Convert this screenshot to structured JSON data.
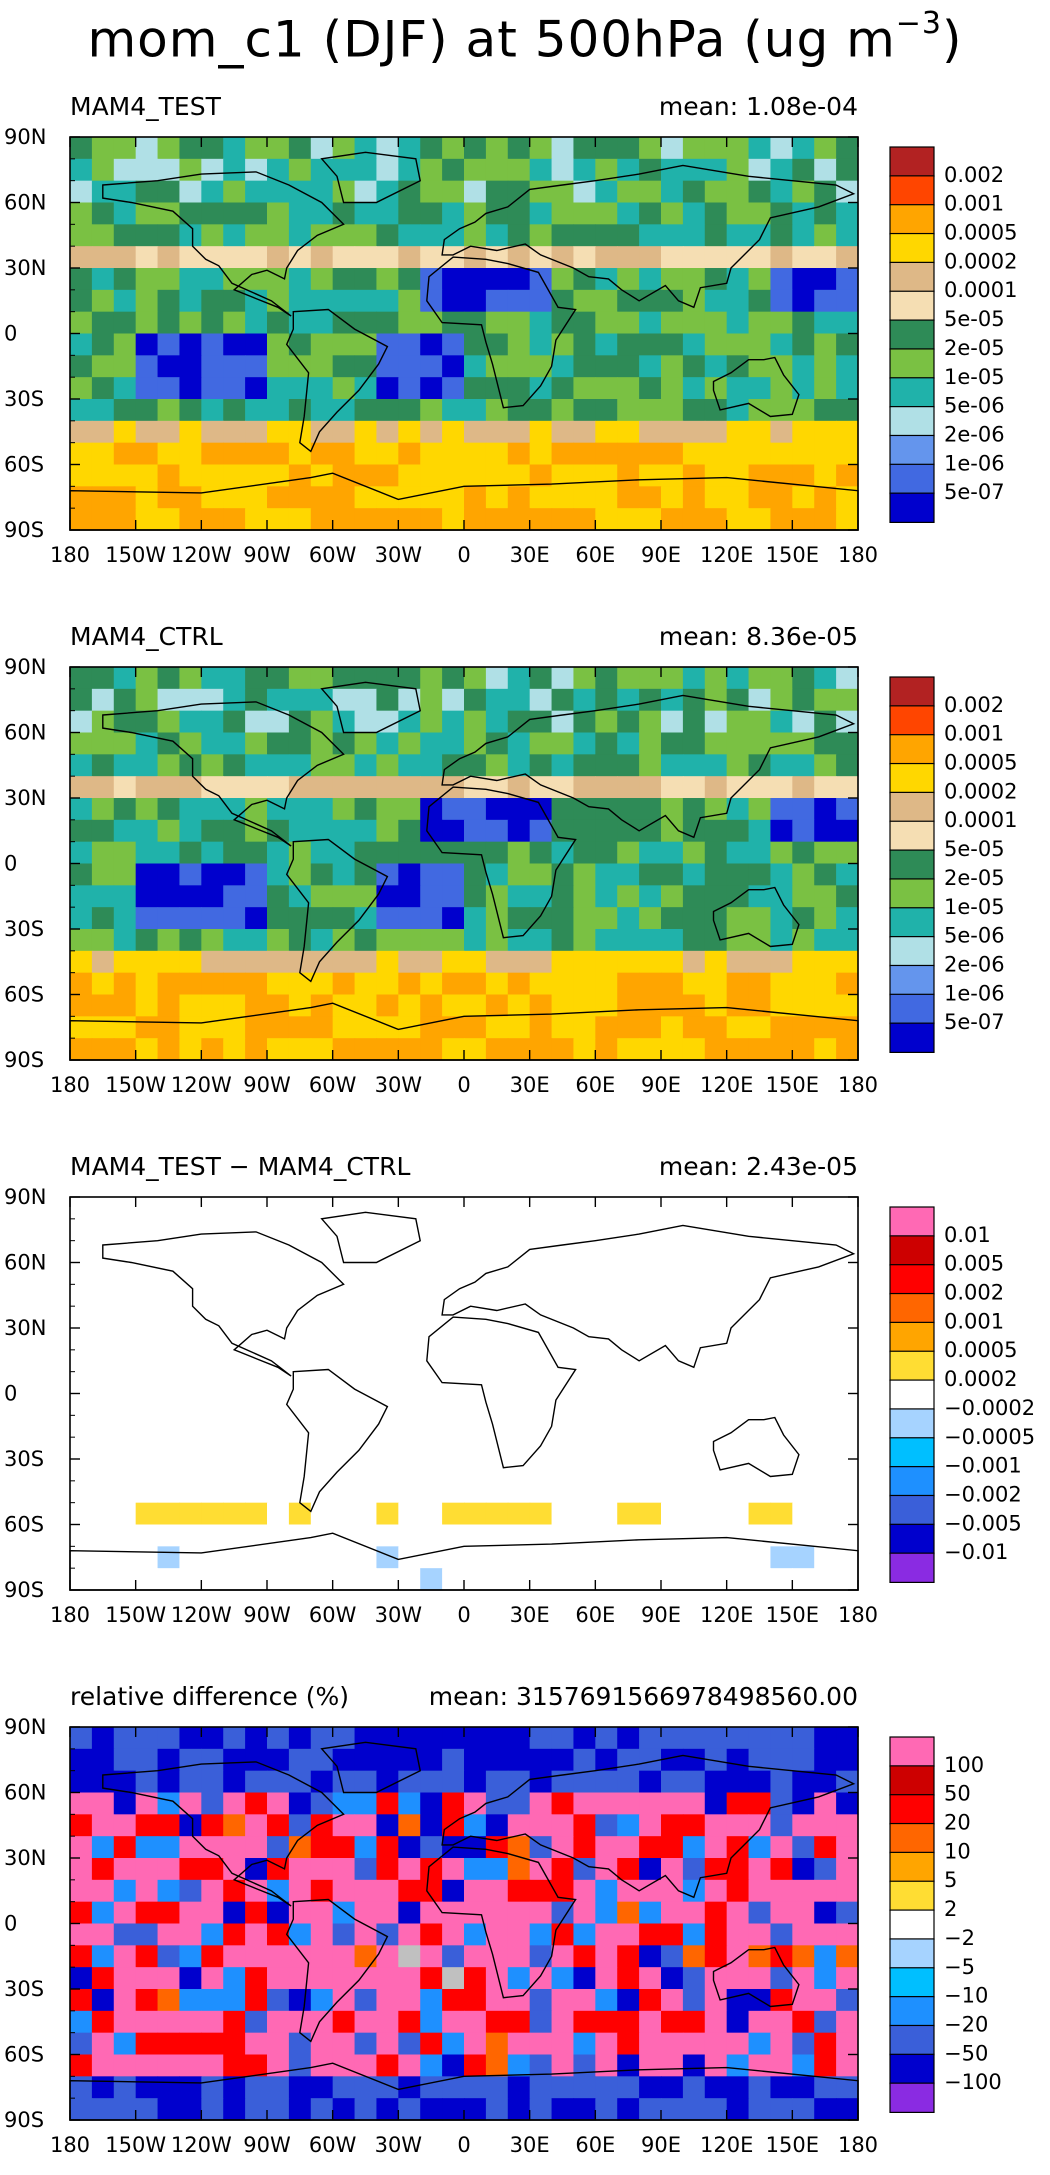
{
  "title_main": "mom_c1 (DJF) at 500hPa (ug m",
  "title_sup": "−3",
  "title_end": ")",
  "lon_ticks": [
    "180",
    "150W",
    "120W",
    "90W",
    "60W",
    "30W",
    "0",
    "30E",
    "60E",
    "90E",
    "120E",
    "150E",
    "180"
  ],
  "lat_ticks": [
    "90N",
    "60N",
    "30N",
    "0",
    "30S",
    "60S",
    "90S"
  ],
  "chart_data": [
    {
      "type": "heatmap",
      "left_label": "MAM4_TEST",
      "right_label": "mean: 1.08e-04",
      "colorbar_labels": [
        "0.002",
        "0.001",
        "0.0005",
        "0.0002",
        "0.0001",
        "5e-05",
        "2e-05",
        "1e-05",
        "5e-06",
        "2e-06",
        "1e-06",
        "5e-07"
      ],
      "colorbar_colors": [
        "#b22222",
        "#ff4500",
        "#ffa500",
        "#ffd700",
        "#deb887",
        "#f5deb3",
        "#2e8b57",
        "#7ac143",
        "#20b2aa",
        "#b0e0e6",
        "#6495ed",
        "#4169e1",
        "#0000cd"
      ],
      "xlim": [
        "180",
        "180"
      ],
      "ylim": [
        "90S",
        "90N"
      ]
    },
    {
      "type": "heatmap",
      "left_label": "MAM4_CTRL",
      "right_label": "mean: 8.36e-05",
      "colorbar_labels": [
        "0.002",
        "0.001",
        "0.0005",
        "0.0002",
        "0.0001",
        "5e-05",
        "2e-05",
        "1e-05",
        "5e-06",
        "2e-06",
        "1e-06",
        "5e-07"
      ],
      "colorbar_colors": [
        "#b22222",
        "#ff4500",
        "#ffa500",
        "#ffd700",
        "#deb887",
        "#f5deb3",
        "#2e8b57",
        "#7ac143",
        "#20b2aa",
        "#b0e0e6",
        "#6495ed",
        "#4169e1",
        "#0000cd"
      ],
      "xlim": [
        "180",
        "180"
      ],
      "ylim": [
        "90S",
        "90N"
      ]
    },
    {
      "type": "heatmap",
      "left_label": "MAM4_TEST − MAM4_CTRL",
      "right_label": "mean: 2.43e-05",
      "colorbar_labels": [
        "0.01",
        "0.005",
        "0.002",
        "0.001",
        "0.0005",
        "0.0002",
        "−0.0002",
        "−0.0005",
        "−0.001",
        "−0.002",
        "−0.005",
        "−0.01"
      ],
      "colorbar_colors": [
        "#ff69b4",
        "#cd0000",
        "#ff0000",
        "#ff6600",
        "#ffa500",
        "#ffdd33",
        "#ffffff",
        "#a6d3ff",
        "#00bfff",
        "#1e90ff",
        "#3a5fd9",
        "#0000cd",
        "#8a2be2"
      ],
      "xlim": [
        "180",
        "180"
      ],
      "ylim": [
        "90S",
        "90N"
      ]
    },
    {
      "type": "heatmap",
      "left_label": "relative difference (%)",
      "right_label": "mean: 315769156697849856\u00000.00",
      "colorbar_labels": [
        "100",
        "50",
        "20",
        "10",
        "5",
        "2",
        "−2",
        "−5",
        "−10",
        "−20",
        "−50",
        "−100"
      ],
      "colorbar_colors": [
        "#ff69b4",
        "#cd0000",
        "#ff0000",
        "#ff6600",
        "#ffa500",
        "#ffdd33",
        "#ffffff",
        "#a6d3ff",
        "#00bfff",
        "#1e90ff",
        "#3a5fd9",
        "#0000cd",
        "#8a2be2"
      ],
      "xlim": [
        "180",
        "180"
      ],
      "ylim": [
        "90S",
        "90N"
      ]
    }
  ]
}
